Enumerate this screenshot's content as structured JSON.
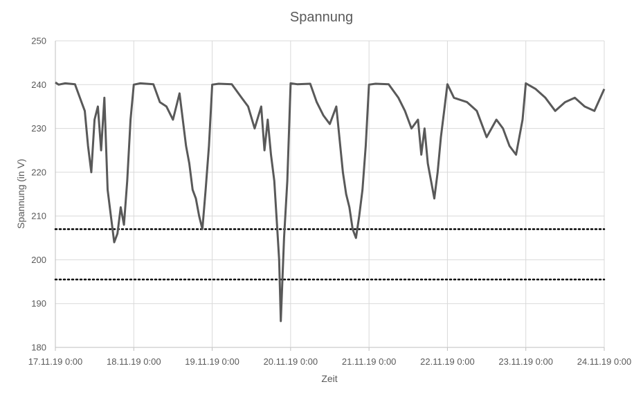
{
  "chart_data": {
    "type": "line",
    "title": "Spannung",
    "xlabel": "Zeit",
    "ylabel": "Spannung (in V)",
    "ylim": [
      180,
      250
    ],
    "yticks": [
      180,
      190,
      200,
      210,
      220,
      230,
      240,
      250
    ],
    "xlim": [
      "17.11.19 0:00",
      "24.11.19 0:00"
    ],
    "xticks": [
      "17.11.19 0:00",
      "18.11.19 0:00",
      "19.11.19 0:00",
      "20.11.19 0:00",
      "21.11.19 0:00",
      "22.11.19 0:00",
      "23.11.19 0:00",
      "24.11.19 0:00"
    ],
    "grid": true,
    "legend": "none",
    "colors": {
      "series": "#595959",
      "grid": "#d9d9d9",
      "limit_lines": "#000000"
    },
    "reference_lines": [
      {
        "y": 207,
        "style": "dotted"
      },
      {
        "y": 195.5,
        "style": "dotted"
      }
    ],
    "series": [
      {
        "x": [
          "17.11.19 0:00",
          "17.11.19 1:00",
          "17.11.19 3:00",
          "17.11.19 6:00",
          "17.11.19 8:00",
          "17.11.19 9:00",
          "17.11.19 10:00",
          "17.11.19 11:00",
          "17.11.19 12:00",
          "17.11.19 13:00",
          "17.11.19 14:00",
          "17.11.19 15:00",
          "17.11.19 16:00",
          "17.11.19 17:00",
          "17.11.19 18:00",
          "17.11.19 19:00",
          "17.11.19 20:00",
          "17.11.19 21:00",
          "17.11.19 22:00",
          "17.11.19 23:00",
          "18.11.19 0:00",
          "18.11.19 2:00",
          "18.11.19 6:00",
          "18.11.19 8:00",
          "18.11.19 10:00",
          "18.11.19 12:00",
          "18.11.19 14:00",
          "18.11.19 16:00",
          "18.11.19 17:00",
          "18.11.19 18:00",
          "18.11.19 19:00",
          "18.11.19 20:00",
          "18.11.19 21:00",
          "18.11.19 22:00",
          "18.11.19 23:00",
          "19.11.19 0:00",
          "19.11.19 2:00",
          "19.11.19 6:00",
          "19.11.19 9:00",
          "19.11.19 11:00",
          "19.11.19 13:00",
          "19.11.19 15:00",
          "19.11.19 16:00",
          "19.11.19 17:00",
          "19.11.19 18:00",
          "19.11.19 19:00",
          "19.11.19 20:00",
          "19.11.19 20:30",
          "19.11.19 21:00",
          "19.11.19 22:00",
          "19.11.19 23:00",
          "20.11.19 0:00",
          "20.11.19 2:00",
          "20.11.19 6:00",
          "20.11.19 8:00",
          "20.11.19 10:00",
          "20.11.19 12:00",
          "20.11.19 14:00",
          "20.11.19 16:00",
          "20.11.19 17:00",
          "20.11.19 18:00",
          "20.11.19 19:00",
          "20.11.19 20:00",
          "20.11.19 21:00",
          "20.11.19 22:00",
          "20.11.19 23:00",
          "21.11.19 0:00",
          "21.11.19 2:00",
          "21.11.19 6:00",
          "21.11.19 9:00",
          "21.11.19 11:00",
          "21.11.19 13:00",
          "21.11.19 15:00",
          "21.11.19 16:00",
          "21.11.19 17:00",
          "21.11.19 18:00",
          "21.11.19 19:00",
          "21.11.19 20:00",
          "21.11.19 21:00",
          "21.11.19 22:00",
          "21.11.19 23:00",
          "22.11.19 0:00",
          "22.11.19 2:00",
          "22.11.19 6:00",
          "22.11.19 9:00",
          "22.11.19 12:00",
          "22.11.19 15:00",
          "22.11.19 17:00",
          "22.11.19 19:00",
          "22.11.19 21:00",
          "22.11.19 23:00",
          "23.11.19 0:00",
          "23.11.19 3:00",
          "23.11.19 6:00",
          "23.11.19 9:00",
          "23.11.19 12:00",
          "23.11.19 15:00",
          "23.11.19 18:00",
          "23.11.19 21:00",
          "24.11.19 0:00"
        ],
        "values": [
          240.5,
          240.0,
          240.3,
          240.1,
          236.0,
          234.0,
          226.0,
          220.0,
          232.0,
          235.0,
          225.0,
          237.0,
          216.0,
          210.0,
          204.0,
          206.0,
          212.0,
          208.0,
          218.0,
          232.0,
          240.0,
          240.3,
          240.1,
          236.0,
          235.0,
          232.0,
          238.0,
          226.0,
          222.0,
          216.0,
          214.0,
          210.0,
          207.0,
          216.0,
          226.0,
          240.0,
          240.2,
          240.1,
          237.0,
          235.0,
          230.0,
          235.0,
          225.0,
          232.0,
          224.0,
          218.0,
          206.0,
          200.0,
          186.0,
          205.0,
          218.0,
          240.3,
          240.1,
          240.2,
          236.0,
          233.0,
          231.0,
          235.0,
          220.0,
          215.0,
          212.0,
          207.0,
          205.0,
          210.0,
          216.0,
          226.0,
          240.0,
          240.2,
          240.1,
          237.0,
          234.0,
          230.0,
          232.0,
          224.0,
          230.0,
          222.0,
          218.0,
          214.0,
          220.0,
          228.0,
          234.0,
          240.1,
          237.0,
          236.0,
          234.0,
          228.0,
          232.0,
          230.0,
          226.0,
          224.0,
          232.0,
          240.3,
          239.0,
          237.0,
          234.0,
          236.0,
          237.0,
          235.0,
          234.0,
          239.0
        ]
      }
    ]
  }
}
